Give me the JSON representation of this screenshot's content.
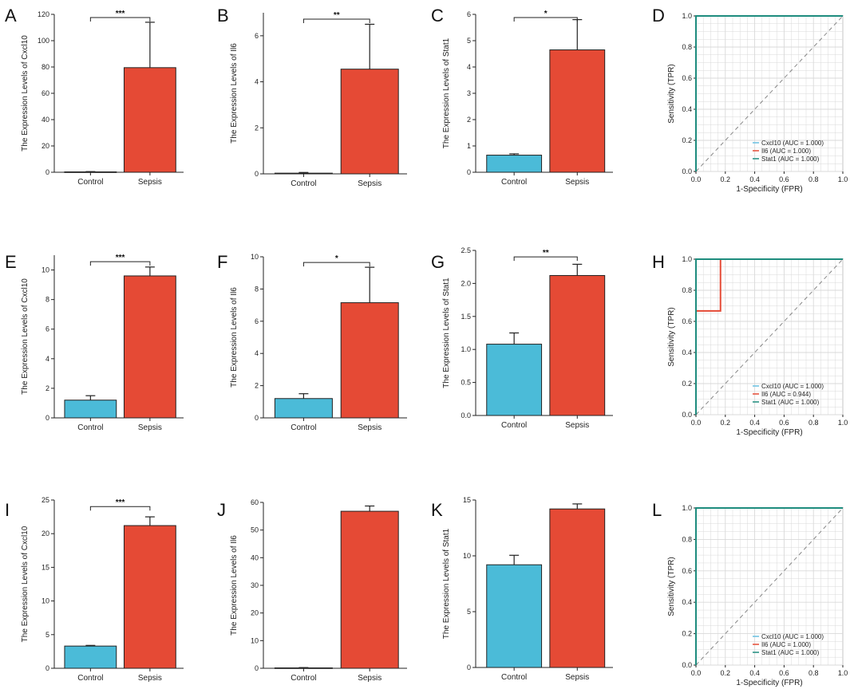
{
  "colors": {
    "control": "#4BBBD8",
    "sepsis": "#E54A35",
    "roc_cxcl10": "#67BFE0",
    "roc_il6": "#E54A35",
    "roc_stat1": "#1E8C7E",
    "grid": "#D9D9D9",
    "axis": "#222222",
    "diagonal": "#888888"
  },
  "chart_data": [
    {
      "panel": "A",
      "type": "bar",
      "ylabel": "The Expression Levels of Cxcl10",
      "categories": [
        "Control",
        "Sepsis"
      ],
      "values": [
        0.3,
        79.5
      ],
      "errors": [
        0.2,
        34.5
      ],
      "ylim": [
        0,
        120
      ],
      "yticks": [
        "0",
        "20",
        "40",
        "60",
        "80",
        "100",
        "120"
      ],
      "significance": "***"
    },
    {
      "panel": "B",
      "type": "bar",
      "ylabel": "The Expression Levels of Il6",
      "categories": [
        "Control",
        "Sepsis"
      ],
      "values": [
        0.03,
        4.55
      ],
      "errors": [
        0.03,
        1.95
      ],
      "ylim": [
        0,
        7
      ],
      "yticks": [
        "0",
        "2",
        "4",
        "6"
      ],
      "significance": "**"
    },
    {
      "panel": "C",
      "type": "bar",
      "ylabel": "The Expression Levels of Stat1",
      "categories": [
        "Control",
        "Sepsis"
      ],
      "values": [
        0.65,
        4.65
      ],
      "errors": [
        0.05,
        1.15
      ],
      "ylim": [
        0,
        6
      ],
      "yticks": [
        "0",
        "1",
        "2",
        "3",
        "4",
        "5",
        "6"
      ],
      "significance": "*"
    },
    {
      "panel": "D",
      "type": "line",
      "xlabel": "1-Specificity (FPR)",
      "ylabel": "Sensitivity (TPR)",
      "xlim": [
        0,
        1
      ],
      "ylim": [
        0,
        1
      ],
      "xticks": [
        "0.0",
        "0.2",
        "0.4",
        "0.6",
        "0.8",
        "1.0"
      ],
      "yticks": [
        "0.0",
        "0.2",
        "0.4",
        "0.6",
        "0.8",
        "1.0"
      ],
      "series": [
        {
          "name": "Cxcl10",
          "legend": "Cxcl10 (AUC = 1.000)",
          "x": [
            0,
            0,
            1
          ],
          "y": [
            0,
            1,
            1
          ]
        },
        {
          "name": "Il6",
          "legend": "Il6 (AUC = 1.000)",
          "x": [
            0,
            0,
            1
          ],
          "y": [
            0,
            1,
            1
          ]
        },
        {
          "name": "Stat1",
          "legend": "Stat1 (AUC = 1.000)",
          "x": [
            0,
            0,
            1
          ],
          "y": [
            0,
            1,
            1
          ]
        }
      ]
    },
    {
      "panel": "E",
      "type": "bar",
      "ylabel": "The Expression Levels of Cxcl10",
      "categories": [
        "Control",
        "Sepsis"
      ],
      "values": [
        1.2,
        9.6
      ],
      "errors": [
        0.3,
        0.6
      ],
      "ylim": [
        0,
        11
      ],
      "yticks": [
        "0",
        "2",
        "4",
        "6",
        "8",
        "10"
      ],
      "significance": "***"
    },
    {
      "panel": "F",
      "type": "bar",
      "ylabel": "The Expression Levels of Il6",
      "categories": [
        "Control",
        "Sepsis"
      ],
      "values": [
        1.2,
        7.15
      ],
      "errors": [
        0.3,
        2.2
      ],
      "ylim": [
        0,
        10
      ],
      "yticks": [
        "0",
        "2",
        "4",
        "6",
        "8",
        "10"
      ],
      "significance": "*"
    },
    {
      "panel": "G",
      "type": "bar",
      "ylabel": "The Expression Levels of Stat1",
      "categories": [
        "Control",
        "Sepsis"
      ],
      "values": [
        1.08,
        2.12
      ],
      "errors": [
        0.17,
        0.17
      ],
      "ylim": [
        0,
        2.5
      ],
      "yticks": [
        "0.0",
        "0.5",
        "1.0",
        "1.5",
        "2.0",
        "2.5"
      ],
      "significance": "**"
    },
    {
      "panel": "H",
      "type": "line",
      "xlabel": "1-Specificity (FPR)",
      "ylabel": "Sensitivity (TPR)",
      "xlim": [
        0,
        1
      ],
      "ylim": [
        0,
        1
      ],
      "xticks": [
        "0.0",
        "0.2",
        "0.4",
        "0.6",
        "0.8",
        "1.0"
      ],
      "yticks": [
        "0.0",
        "0.2",
        "0.4",
        "0.6",
        "0.8",
        "1.0"
      ],
      "series": [
        {
          "name": "Cxcl10",
          "legend": "Cxcl10 (AUC = 1.000)",
          "x": [
            0,
            0,
            1
          ],
          "y": [
            0,
            1,
            1
          ]
        },
        {
          "name": "Il6",
          "legend": "Il6 (AUC = 0.944)",
          "x": [
            0,
            0,
            0.167,
            0.167,
            1
          ],
          "y": [
            0,
            0.667,
            0.667,
            1,
            1
          ]
        },
        {
          "name": "Stat1",
          "legend": "Stat1 (AUC = 1.000)",
          "x": [
            0,
            0,
            1
          ],
          "y": [
            0,
            1,
            1
          ]
        }
      ]
    },
    {
      "panel": "I",
      "type": "bar",
      "ylabel": "The Expression Levels of Cxcl10",
      "categories": [
        "Control",
        "Sepsis"
      ],
      "values": [
        3.3,
        21.2
      ],
      "errors": [
        0.1,
        1.3
      ],
      "ylim": [
        0,
        25
      ],
      "yticks": [
        "0",
        "5",
        "10",
        "15",
        "20",
        "25"
      ],
      "significance": "***"
    },
    {
      "panel": "J",
      "type": "bar",
      "ylabel": "The Expression Levels of Il6",
      "categories": [
        "Control",
        "Sepsis"
      ],
      "values": [
        0.15,
        56.8
      ],
      "errors": [
        0.1,
        1.9
      ],
      "ylim": [
        0,
        60
      ],
      "yticks": [
        "0",
        "10",
        "20",
        "30",
        "40",
        "50",
        "60"
      ],
      "significance": ""
    },
    {
      "panel": "K",
      "type": "bar",
      "ylabel": "The Expression Levels of Stat1",
      "categories": [
        "Control",
        "Sepsis"
      ],
      "values": [
        9.2,
        14.2
      ],
      "errors": [
        0.85,
        0.45
      ],
      "ylim": [
        0,
        15
      ],
      "yticks": [
        "0",
        "5",
        "10",
        "15"
      ],
      "significance": ""
    },
    {
      "panel": "L",
      "type": "line",
      "xlabel": "1-Specificity (FPR)",
      "ylabel": "Sensitivity (TPR)",
      "xlim": [
        0,
        1
      ],
      "ylim": [
        0,
        1
      ],
      "xticks": [
        "0.0",
        "0.2",
        "0.4",
        "0.6",
        "0.8",
        "1.0"
      ],
      "yticks": [
        "0.0",
        "0.2",
        "0.4",
        "0.6",
        "0.8",
        "1.0"
      ],
      "series": [
        {
          "name": "Cxcl10",
          "legend": "Cxcl10 (AUC = 1.000)",
          "x": [
            0,
            0,
            1
          ],
          "y": [
            0,
            1,
            1
          ]
        },
        {
          "name": "Il6",
          "legend": "Il6 (AUC = 1.000)",
          "x": [
            0,
            0,
            1
          ],
          "y": [
            0,
            1,
            1
          ]
        },
        {
          "name": "Stat1",
          "legend": "Stat1 (AUC = 1.000)",
          "x": [
            0,
            0,
            1
          ],
          "y": [
            0,
            1,
            1
          ]
        }
      ]
    }
  ]
}
